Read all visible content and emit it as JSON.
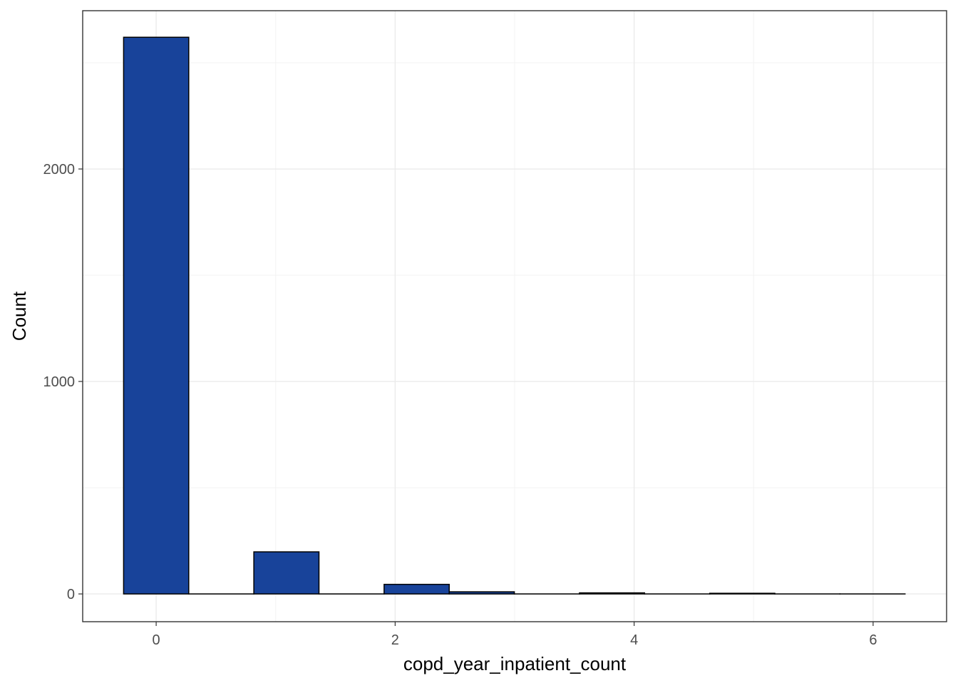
{
  "chart_data": {
    "type": "bar",
    "histogram": true,
    "xlabel": "copd_year_inpatient_count",
    "ylabel": "Count",
    "xlim": [
      -0.615,
      6.615
    ],
    "ylim": [
      -130.7,
      2745
    ],
    "x_ticks": [
      0,
      2,
      4,
      6
    ],
    "x_tick_labels": [
      "0",
      "2",
      "4",
      "6"
    ],
    "y_ticks": [
      0,
      1000,
      2000
    ],
    "y_tick_labels": [
      "0",
      "1000",
      "2000"
    ],
    "x_minor": [
      1,
      3,
      5
    ],
    "y_minor": [
      500,
      1500,
      2500
    ],
    "bin_width": 0.545,
    "bins": [
      {
        "x": 0.0,
        "value": 2620
      },
      {
        "x": 0.545,
        "value": 0
      },
      {
        "x": 1.09,
        "value": 198
      },
      {
        "x": 1.635,
        "value": 0
      },
      {
        "x": 2.18,
        "value": 45
      },
      {
        "x": 2.725,
        "value": 10
      },
      {
        "x": 3.27,
        "value": 0
      },
      {
        "x": 3.815,
        "value": 5
      },
      {
        "x": 4.36,
        "value": 0
      },
      {
        "x": 4.905,
        "value": 3
      },
      {
        "x": 5.45,
        "value": 0
      },
      {
        "x": 5.995,
        "value": 0
      }
    ],
    "bar_fill": "#18439a",
    "bar_outline": "#000000",
    "grid": true,
    "theme": "bw"
  }
}
